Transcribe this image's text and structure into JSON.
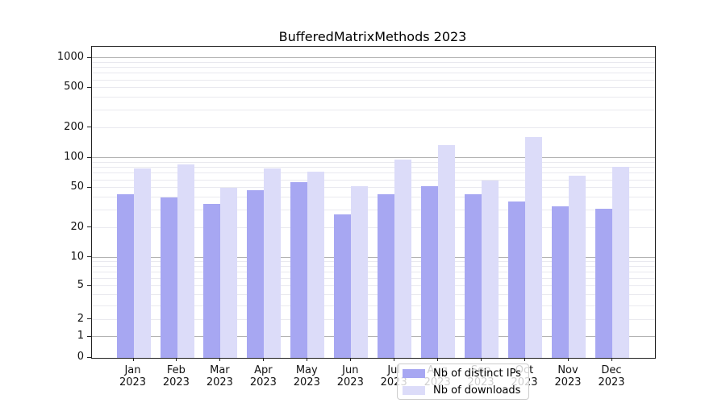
{
  "chart_data": {
    "type": "bar",
    "title": "BufferedMatrixMethods 2023",
    "categories": [
      "Jan 2023",
      "Feb 2023",
      "Mar 2023",
      "Apr 2023",
      "May 2023",
      "Jun 2023",
      "Jul 2023",
      "Aug 2023",
      "Sep 2023",
      "Oct 2023",
      "Nov 2023",
      "Dec 2023"
    ],
    "series": [
      {
        "name": "Nb of distinct IPs",
        "color": "#a7a7f2",
        "values": [
          43,
          40,
          35,
          48,
          57,
          27,
          43,
          52,
          43,
          37,
          33,
          31
        ]
      },
      {
        "name": "Nb of downloads",
        "color": "#dcdcf9",
        "values": [
          78,
          86,
          50,
          79,
          73,
          52,
          96,
          135,
          59,
          162,
          66,
          81
        ]
      }
    ],
    "yscale": "symlog",
    "yticks": [
      0,
      1,
      2,
      5,
      10,
      20,
      50,
      100,
      200,
      500,
      1000
    ],
    "ylim": [
      0,
      1300
    ],
    "xlabel": "",
    "ylabel": "",
    "grid": "on",
    "legend_position": "lower center",
    "colors": {
      "axis": "#222222",
      "grid_major": "#b3b3b3",
      "grid_minor": "#e9e9ef",
      "background": "#ffffff"
    }
  }
}
